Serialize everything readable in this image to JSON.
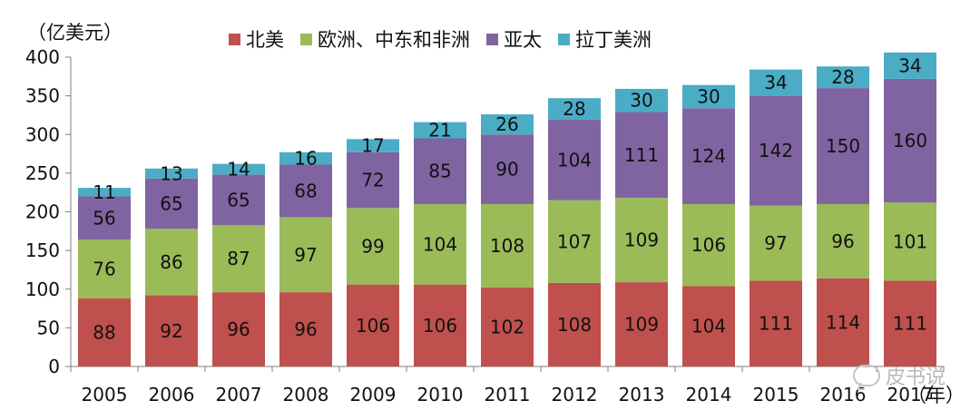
{
  "chart_data": {
    "type": "bar",
    "stacked": true,
    "unit_label": "（亿美元）",
    "x_unit_label": "（年）",
    "categories": [
      "2005",
      "2006",
      "2007",
      "2008",
      "2009",
      "2010",
      "2011",
      "2012",
      "2013",
      "2014",
      "2015",
      "2016",
      "2017"
    ],
    "series": [
      {
        "name": "北美",
        "color": "#c0504d",
        "values": [
          88,
          92,
          96,
          96,
          106,
          106,
          102,
          108,
          109,
          104,
          111,
          114,
          111
        ]
      },
      {
        "name": "欧洲、中东和非洲",
        "color": "#9bbb59",
        "values": [
          76,
          86,
          87,
          97,
          99,
          104,
          108,
          107,
          109,
          106,
          97,
          96,
          101
        ]
      },
      {
        "name": "亚太",
        "color": "#8064a2",
        "values": [
          56,
          65,
          65,
          68,
          72,
          85,
          90,
          104,
          111,
          124,
          142,
          150,
          160
        ]
      },
      {
        "name": "拉丁美洲",
        "color": "#4bacc6",
        "values": [
          11,
          13,
          14,
          16,
          17,
          21,
          26,
          28,
          30,
          30,
          34,
          28,
          34
        ]
      }
    ],
    "ylim": [
      0,
      400
    ],
    "yticks": [
      0,
      50,
      100,
      150,
      200,
      250,
      300,
      350,
      400
    ],
    "grid": false,
    "legend_position": "top"
  },
  "watermark_text": "皮书说"
}
